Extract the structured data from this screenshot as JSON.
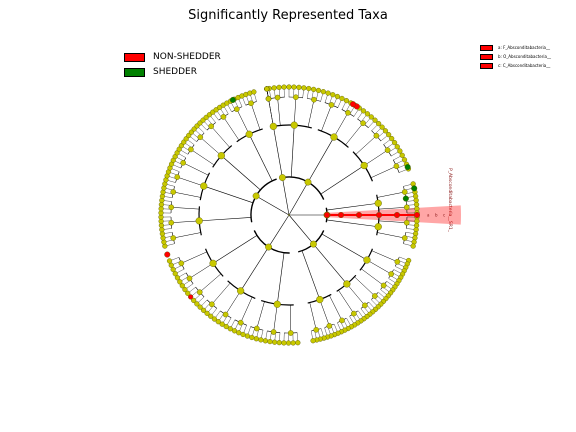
{
  "figure": {
    "title": "Significantly Represented Taxa"
  },
  "legend": {
    "items": [
      {
        "label": "NON-SHEDDER",
        "color": "#ff0000"
      },
      {
        "label": "SHEDDER",
        "color": "#008000"
      }
    ]
  },
  "clade_legend": {
    "items": [
      {
        "label": "a: F_Absconditabacteria__",
        "color": "#ff0000"
      },
      {
        "label": "b: O_Absconditabacteria__",
        "color": "#ff0000"
      },
      {
        "label": "c: C_Absconditabacteria__",
        "color": "#ff0000"
      }
    ]
  },
  "clade_annotation": {
    "label": "P_Absconditabacteria__SR1_",
    "letters": [
      "a",
      "b",
      "c"
    ],
    "color": "#ff0000"
  },
  "colors": {
    "default_node": "#c8c800",
    "non_shedder": "#ff0000",
    "shedder": "#008000",
    "edge": "#000000"
  }
}
